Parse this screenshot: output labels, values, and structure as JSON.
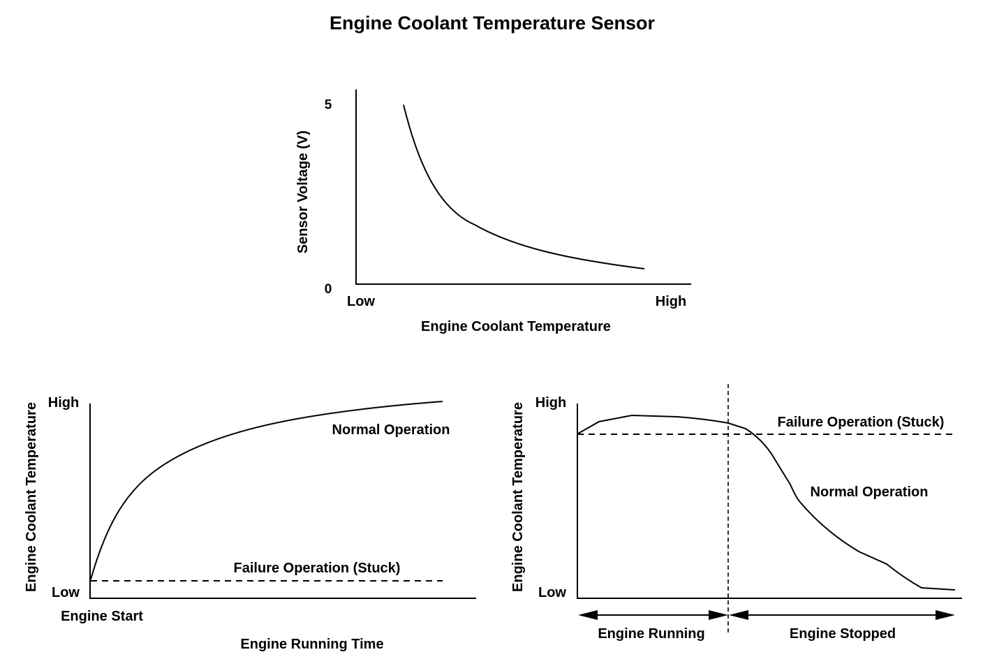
{
  "title": "Engine Coolant Temperature Sensor",
  "top_chart": {
    "y_axis_label": "Sensor Voltage (V)",
    "y_tick_max": "5",
    "y_tick_min": "0",
    "x_tick_low": "Low",
    "x_tick_high": "High",
    "x_axis_label": "Engine Coolant Temperature"
  },
  "left_chart": {
    "y_axis_label": "Engine Coolant Temperature",
    "y_tick_high": "High",
    "y_tick_low": "Low",
    "x_start_label": "Engine Start",
    "x_axis_label": "Engine Running Time",
    "normal_label": "Normal Operation",
    "failure_label": "Failure Operation (Stuck)"
  },
  "right_chart": {
    "y_axis_label": "Engine Coolant Temperature",
    "y_tick_high": "High",
    "y_tick_low": "Low",
    "failure_label": "Failure Operation (Stuck)",
    "normal_label": "Normal Operation",
    "running_label": "Engine Running",
    "stopped_label": "Engine Stopped"
  }
}
